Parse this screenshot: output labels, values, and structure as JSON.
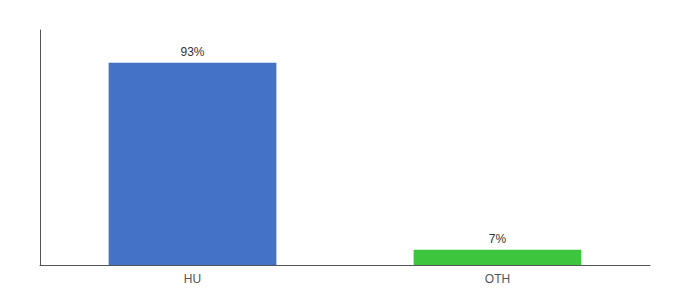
{
  "chart_data": {
    "type": "bar",
    "categories": [
      "HU",
      "OTH"
    ],
    "values": [
      93,
      7
    ],
    "value_labels": [
      "93%",
      "7%"
    ],
    "colors": [
      "#4472c4",
      "#3dc63d"
    ],
    "ylim": [
      0,
      108
    ],
    "grid": false,
    "data_labels": true,
    "tick_labels": "x"
  }
}
